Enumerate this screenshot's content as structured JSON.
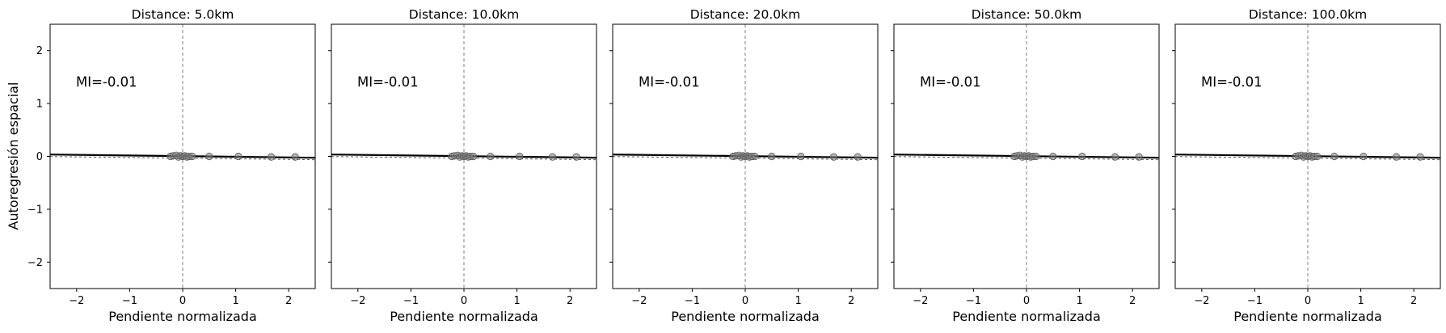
{
  "figure": {
    "ylabel": "Autoregresión espacial"
  },
  "chart_data": [
    {
      "type": "scatter",
      "title": "Distance: 5.0km",
      "xlabel": "Pendiente normalizada",
      "ylabel": "Autoregresión espacial",
      "xlim": [
        -2.5,
        2.5
      ],
      "ylim": [
        -2.5,
        2.5
      ],
      "xticks": [
        "−2",
        "−1",
        "0",
        "1",
        "2"
      ],
      "yticks": [
        "−2",
        "−1",
        "0",
        "1",
        "2"
      ],
      "annotation": "MI=-0.01",
      "points": [
        [
          -0.23,
          0.0
        ],
        [
          -0.18,
          0.01
        ],
        [
          -0.12,
          0.02
        ],
        [
          -0.08,
          -0.01
        ],
        [
          -0.04,
          0.01
        ],
        [
          0.0,
          0.0
        ],
        [
          0.04,
          0.01
        ],
        [
          0.08,
          -0.01
        ],
        [
          0.12,
          0.0
        ],
        [
          0.18,
          0.0
        ],
        [
          0.5,
          0.0
        ],
        [
          1.05,
          0.0
        ],
        [
          1.67,
          -0.01
        ],
        [
          2.12,
          -0.01
        ]
      ],
      "regression": {
        "x": [
          -2.5,
          2.5
        ],
        "y": [
          0.035,
          -0.025
        ]
      },
      "colors": {
        "points": "#808080",
        "line": "#000000",
        "vline": "#808080"
      }
    },
    {
      "type": "scatter",
      "title": "Distance: 10.0km",
      "xlabel": "Pendiente normalizada",
      "ylabel": "",
      "xlim": [
        -2.5,
        2.5
      ],
      "ylim": [
        -2.5,
        2.5
      ],
      "xticks": [
        "−2",
        "−1",
        "0",
        "1",
        "2"
      ],
      "yticks": [],
      "annotation": "MI=-0.01",
      "points": [
        [
          -0.23,
          0.0
        ],
        [
          -0.18,
          0.01
        ],
        [
          -0.12,
          0.02
        ],
        [
          -0.08,
          -0.01
        ],
        [
          -0.04,
          0.01
        ],
        [
          0.0,
          0.0
        ],
        [
          0.04,
          0.01
        ],
        [
          0.08,
          -0.01
        ],
        [
          0.12,
          0.0
        ],
        [
          0.18,
          0.0
        ],
        [
          0.5,
          0.0
        ],
        [
          1.05,
          0.0
        ],
        [
          1.67,
          -0.01
        ],
        [
          2.12,
          -0.01
        ]
      ],
      "regression": {
        "x": [
          -2.5,
          2.5
        ],
        "y": [
          0.035,
          -0.025
        ]
      },
      "colors": {
        "points": "#808080",
        "line": "#000000",
        "vline": "#808080"
      }
    },
    {
      "type": "scatter",
      "title": "Distance: 20.0km",
      "xlabel": "Pendiente normalizada",
      "ylabel": "",
      "xlim": [
        -2.5,
        2.5
      ],
      "ylim": [
        -2.5,
        2.5
      ],
      "xticks": [
        "−2",
        "−1",
        "0",
        "1",
        "2"
      ],
      "yticks": [],
      "annotation": "MI=-0.01",
      "points": [
        [
          -0.23,
          0.0
        ],
        [
          -0.18,
          0.01
        ],
        [
          -0.12,
          0.02
        ],
        [
          -0.08,
          -0.01
        ],
        [
          -0.04,
          0.01
        ],
        [
          0.0,
          0.0
        ],
        [
          0.04,
          0.01
        ],
        [
          0.08,
          -0.01
        ],
        [
          0.12,
          0.0
        ],
        [
          0.18,
          0.0
        ],
        [
          0.5,
          0.0
        ],
        [
          1.05,
          0.0
        ],
        [
          1.67,
          -0.01
        ],
        [
          2.12,
          -0.01
        ]
      ],
      "regression": {
        "x": [
          -2.5,
          2.5
        ],
        "y": [
          0.035,
          -0.025
        ]
      },
      "colors": {
        "points": "#808080",
        "line": "#000000",
        "vline": "#808080"
      }
    },
    {
      "type": "scatter",
      "title": "Distance: 50.0km",
      "xlabel": "Pendiente normalizada",
      "ylabel": "",
      "xlim": [
        -2.5,
        2.5
      ],
      "ylim": [
        -2.5,
        2.5
      ],
      "xticks": [
        "−2",
        "−1",
        "0",
        "1",
        "2"
      ],
      "yticks": [],
      "annotation": "MI=-0.01",
      "points": [
        [
          -0.23,
          0.0
        ],
        [
          -0.18,
          0.01
        ],
        [
          -0.12,
          0.02
        ],
        [
          -0.08,
          -0.01
        ],
        [
          -0.04,
          0.01
        ],
        [
          0.0,
          0.0
        ],
        [
          0.04,
          0.01
        ],
        [
          0.08,
          -0.01
        ],
        [
          0.12,
          0.0
        ],
        [
          0.18,
          0.0
        ],
        [
          0.5,
          0.0
        ],
        [
          1.05,
          0.0
        ],
        [
          1.67,
          -0.01
        ],
        [
          2.12,
          -0.01
        ]
      ],
      "regression": {
        "x": [
          -2.5,
          2.5
        ],
        "y": [
          0.035,
          -0.025
        ]
      },
      "colors": {
        "points": "#808080",
        "line": "#000000",
        "vline": "#808080"
      }
    },
    {
      "type": "scatter",
      "title": "Distance: 100.0km",
      "xlabel": "Pendiente normalizada",
      "ylabel": "",
      "xlim": [
        -2.5,
        2.5
      ],
      "ylim": [
        -2.5,
        2.5
      ],
      "xticks": [
        "−2",
        "−1",
        "0",
        "1",
        "2"
      ],
      "yticks": [],
      "annotation": "MI=-0.01",
      "points": [
        [
          -0.23,
          0.0
        ],
        [
          -0.18,
          0.01
        ],
        [
          -0.12,
          0.02
        ],
        [
          -0.08,
          -0.01
        ],
        [
          -0.04,
          0.01
        ],
        [
          0.0,
          0.0
        ],
        [
          0.04,
          0.01
        ],
        [
          0.08,
          -0.01
        ],
        [
          0.12,
          0.0
        ],
        [
          0.18,
          0.0
        ],
        [
          0.5,
          0.0
        ],
        [
          1.05,
          0.0
        ],
        [
          1.67,
          -0.01
        ],
        [
          2.12,
          -0.01
        ]
      ],
      "regression": {
        "x": [
          -2.5,
          2.5
        ],
        "y": [
          0.035,
          -0.025
        ]
      },
      "colors": {
        "points": "#808080",
        "line": "#000000",
        "vline": "#808080"
      }
    }
  ]
}
